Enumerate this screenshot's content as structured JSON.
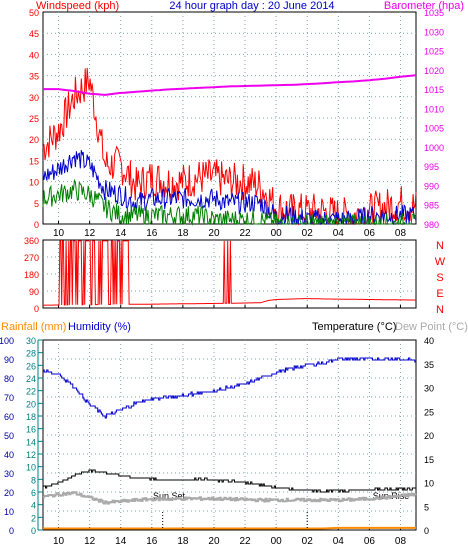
{
  "colors": {
    "red": "#ff0000",
    "blue": "#0000cc",
    "green": "#008000",
    "magenta": "#ee00ee",
    "orange": "#ff8c00",
    "teal": "#008080",
    "black": "#000000",
    "grid": "#7fa7a7",
    "gray": "#aaaaaa",
    "blue_axis": "#0000aa"
  },
  "header": {
    "windspeed_label": "Windspeed (kph)",
    "title": "24 hour graph day : 20 June 2014",
    "barometer_label": "Barometer (hpa)"
  },
  "compass_labels": [
    "N",
    "W",
    "S",
    "E",
    "N"
  ],
  "lower_header": {
    "rainfall_label": "Rainfall (mm)",
    "humidity_label": "Humidity (%)",
    "temperature_label": "Temperature (°C)",
    "dewpoint_label": "Dew Point (°C)"
  },
  "annotations": {
    "sun_set": "Sun Set",
    "sun_rise": "Sun Rise"
  },
  "x_tick_labels": [
    "10",
    "12",
    "14",
    "16",
    "18",
    "20",
    "22",
    "00",
    "02",
    "04",
    "06",
    "08"
  ],
  "chart_data": [
    {
      "type": "line",
      "title": "24 hour graph day : 20 June 2014",
      "x_hours": [
        0,
        1,
        2,
        3,
        4,
        5,
        6,
        7,
        8,
        9,
        10,
        11,
        12,
        13,
        14,
        15,
        16,
        17,
        18,
        19,
        20,
        21,
        22,
        23,
        24
      ],
      "x_start_hour": 9,
      "series": [
        {
          "name": "Windspeed (kph)",
          "role": "gust",
          "axis": "left",
          "color": "red",
          "values": [
            18,
            22,
            30,
            34,
            14,
            14,
            9,
            11,
            10,
            10,
            11,
            11,
            10,
            10,
            9,
            4,
            3,
            3,
            3,
            2,
            2,
            3,
            4,
            5,
            4
          ]
        },
        {
          "name": "",
          "role": "average",
          "axis": "left",
          "color": "blue",
          "values": [
            11,
            13,
            16,
            14,
            8,
            7,
            5,
            6,
            6,
            6,
            6,
            6,
            5,
            5,
            5,
            2,
            2,
            1,
            1,
            1,
            1,
            2,
            2,
            2,
            2
          ]
        },
        {
          "name": "",
          "role": "lull",
          "axis": "left",
          "color": "green",
          "values": [
            6,
            7,
            8,
            7,
            4,
            2,
            2,
            2,
            2,
            2,
            2,
            1,
            1,
            1,
            1,
            0,
            0,
            0,
            0,
            0,
            0,
            0,
            0,
            0,
            0
          ]
        },
        {
          "name": "Barometer (hpa)",
          "axis": "right",
          "color": "magenta",
          "values": [
            1015,
            1015,
            1014.5,
            1013.8,
            1013.5,
            1014,
            1014.3,
            1014.6,
            1014.9,
            1015.1,
            1015.3,
            1015.5,
            1015.7,
            1015.8,
            1015.9,
            1016,
            1016.1,
            1016.3,
            1016.5,
            1016.8,
            1017,
            1017.3,
            1017.7,
            1018.2,
            1018.6
          ]
        }
      ],
      "y_left": {
        "label": "Windspeed (kph)",
        "ylim": [
          0,
          50
        ],
        "ticks": [
          0,
          5,
          10,
          15,
          20,
          25,
          30,
          35,
          40,
          45,
          50
        ]
      },
      "y_right": {
        "label": "Barometer (hpa)",
        "ylim": [
          980,
          1035
        ],
        "ticks": [
          980,
          985,
          990,
          995,
          1000,
          1005,
          1010,
          1015,
          1020,
          1025,
          1030,
          1035
        ]
      },
      "grid": true
    },
    {
      "type": "line",
      "series": [
        {
          "name": "",
          "color": "red",
          "x_hours": [
            0,
            6,
            6.5,
            12,
            14,
            14.5,
            15,
            17,
            18,
            21,
            24
          ],
          "values": [
            15,
            20,
            20,
            25,
            28,
            40,
            45,
            50,
            48,
            45,
            42
          ],
          "erratic_until_hour": 13
        }
      ],
      "ylim": [
        0,
        360
      ],
      "y_ticks": [
        0,
        90,
        180,
        270,
        360
      ],
      "grid": true
    },
    {
      "type": "line",
      "series": [
        {
          "name": "Humidity (%)",
          "axis": "left",
          "color": "blue",
          "values": [
            84,
            82,
            75,
            66,
            60,
            63,
            67,
            69,
            70,
            71,
            72,
            73,
            75,
            77,
            80,
            83,
            85,
            87,
            88,
            90,
            90,
            90,
            90,
            90,
            89
          ]
        },
        {
          "name": "Temperature (°C)",
          "axis": "right",
          "color": "black",
          "values": [
            9,
            10,
            11.5,
            12.5,
            12,
            11.5,
            11,
            10.8,
            10.5,
            10.5,
            10.8,
            10.5,
            10.3,
            10,
            9.5,
            9,
            8.5,
            8.3,
            8.2,
            8.2,
            8.4,
            8.5,
            8.6,
            8.6,
            8.7
          ]
        },
        {
          "name": "Dew Point (°C)",
          "axis": "right",
          "color": "gray",
          "values": [
            7,
            7.5,
            7.8,
            6.8,
            5.8,
            6,
            6.3,
            6.5,
            6.5,
            6.6,
            6.6,
            6.6,
            6.5,
            6.4,
            6.3,
            6.3,
            6.3,
            6.3,
            6.3,
            6.3,
            6.4,
            6.6,
            6.8,
            7.2,
            7.5
          ]
        },
        {
          "name": "Rainfall (mm)",
          "axis": "left_outer",
          "color": "orange",
          "values": [
            0,
            0,
            0,
            0,
            0,
            0,
            0,
            0,
            0,
            0,
            0,
            0,
            0,
            0,
            0,
            0,
            0,
            0,
            0,
            0.3,
            0.3,
            0.3,
            0.3,
            0.3,
            0.3
          ]
        }
      ],
      "y_rain": {
        "label": "Rainfall (mm)",
        "ylim": [
          0,
          100
        ],
        "ticks": [
          0,
          10,
          20,
          30,
          40,
          50,
          60,
          70,
          80,
          90,
          100
        ]
      },
      "y_humidity": {
        "label": "Humidity (%)",
        "ylim": [
          0,
          30
        ],
        "ticks": [
          0,
          2,
          4,
          6,
          8,
          10,
          12,
          14,
          16,
          18,
          20,
          22,
          24,
          26,
          28,
          30
        ]
      },
      "y_temperature": {
        "label": "Temperature (°C)",
        "ylim": [
          0,
          40
        ],
        "ticks": [
          0,
          5,
          10,
          15,
          20,
          25,
          30,
          35,
          40
        ]
      },
      "sun_set_hour": 17,
      "sun_rise_hour": 7.7,
      "grid": true
    }
  ]
}
